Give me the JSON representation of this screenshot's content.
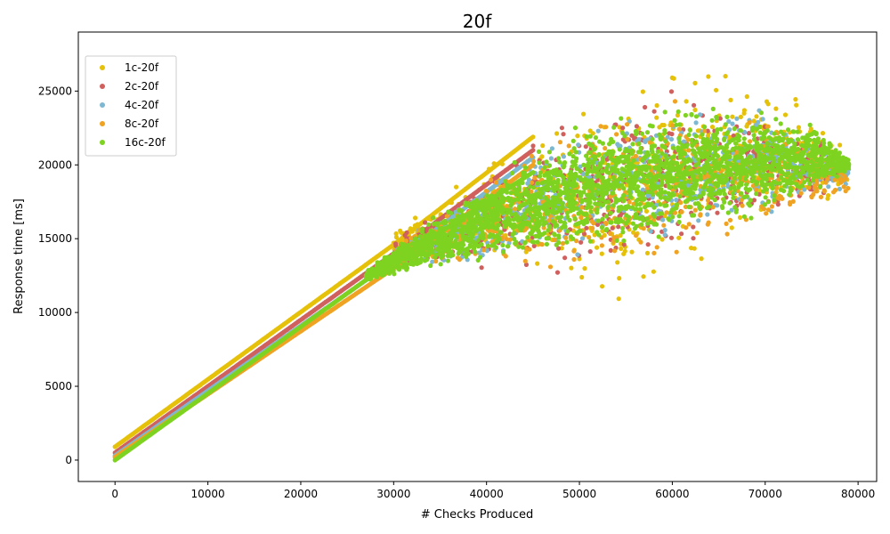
{
  "chart_data": {
    "type": "scatter",
    "title": "20f",
    "xlabel": "# Checks Produced",
    "ylabel": "Response time [ms]",
    "xlim": [
      -3950,
      82000
    ],
    "ylim": [
      -1450,
      29000
    ],
    "x_ticks": [
      0,
      10000,
      20000,
      30000,
      40000,
      50000,
      60000,
      70000,
      80000
    ],
    "y_ticks": [
      0,
      5000,
      10000,
      15000,
      20000,
      25000
    ],
    "grid": false,
    "legend_position": "top-left",
    "series": [
      {
        "name": "1c-20f",
        "color": "#e6c10a",
        "linear_trend": {
          "x": [
            0,
            30000,
            45000
          ],
          "y": [
            900,
            14600,
            21900
          ]
        },
        "cloud_envelope": {
          "x": [
            30000,
            40000,
            50000,
            55000,
            60000,
            65000,
            70000,
            75000,
            79000
          ],
          "y_low": [
            14000,
            13200,
            11000,
            9200,
            10500,
            13500,
            15000,
            16500,
            18000
          ],
          "y_high": [
            15500,
            20500,
            24500,
            26000,
            27900,
            27500,
            26000,
            24500,
            21000
          ]
        }
      },
      {
        "name": "2c-20f",
        "color": "#d0605e",
        "linear_trend": {
          "x": [
            0,
            30000,
            45000
          ],
          "y": [
            500,
            14000,
            21000
          ]
        },
        "cloud_envelope": {
          "x": [
            30000,
            40000,
            50000,
            60000,
            70000,
            79000
          ],
          "y_low": [
            13000,
            12500,
            11500,
            13500,
            15500,
            19000
          ],
          "y_high": [
            15000,
            20000,
            24000,
            25500,
            24500,
            20500
          ]
        }
      },
      {
        "name": "4c-20f",
        "color": "#7eb7d1",
        "linear_trend": {
          "x": [
            0,
            30000,
            45000
          ],
          "y": [
            300,
            13500,
            20500
          ]
        },
        "cloud_envelope": {
          "x": [
            30000,
            40000,
            50000,
            60000,
            70000,
            79000
          ],
          "y_low": [
            13000,
            12500,
            13000,
            14000,
            16000,
            18500
          ],
          "y_high": [
            14500,
            19500,
            23500,
            25000,
            24500,
            20500
          ]
        }
      },
      {
        "name": "8c-20f",
        "color": "#f0a323",
        "linear_trend": {
          "x": [
            0,
            30000,
            45000
          ],
          "y": [
            200,
            13000,
            20000
          ]
        },
        "cloud_envelope": {
          "x": [
            30000,
            40000,
            50000,
            60000,
            70000,
            79000
          ],
          "y_low": [
            13000,
            12500,
            12000,
            13000,
            15000,
            18000
          ],
          "y_high": [
            14500,
            19500,
            23500,
            25000,
            24000,
            20500
          ]
        }
      },
      {
        "name": "16c-20f",
        "color": "#7ed321",
        "linear_trend": {
          "x": [
            0,
            27000,
            45000
          ],
          "y": [
            0,
            12200,
            19500
          ]
        },
        "cloud_envelope": {
          "x": [
            27000,
            30000,
            40000,
            50000,
            60000,
            70000,
            75000,
            79000
          ],
          "y_low": [
            12000,
            12400,
            13000,
            13500,
            14500,
            16000,
            17500,
            19500
          ],
          "y_high": [
            12800,
            14500,
            19500,
            23500,
            24500,
            24500,
            23500,
            20500
          ]
        }
      }
    ]
  }
}
